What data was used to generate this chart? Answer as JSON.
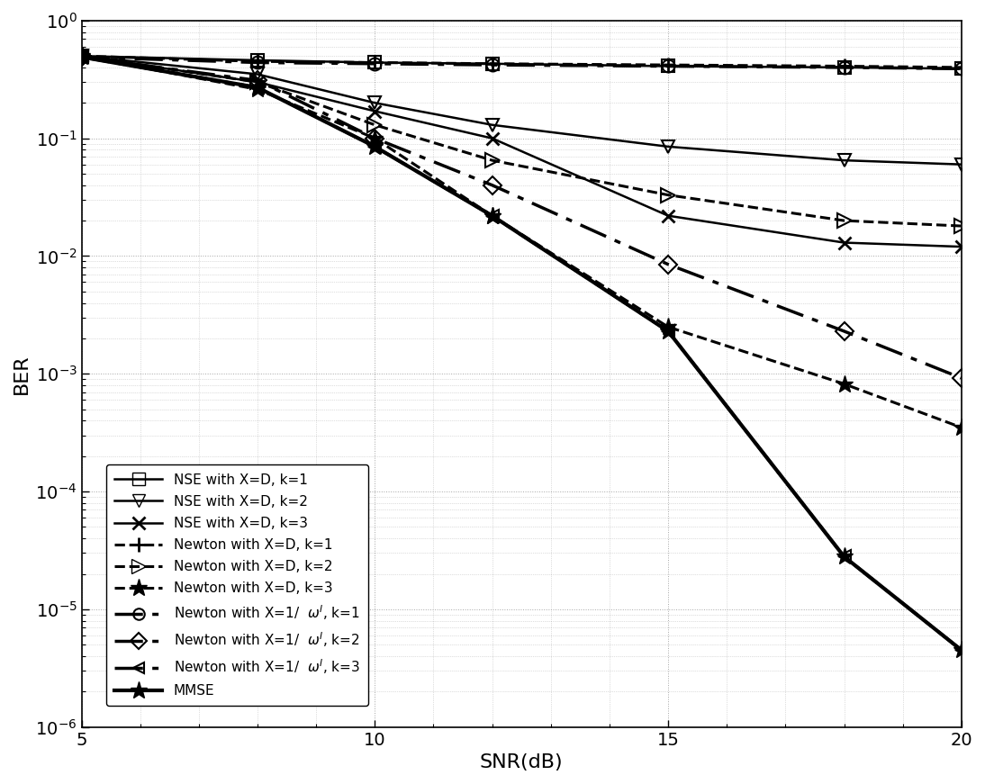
{
  "xlabel": "SNR(dB)",
  "ylabel": "BER",
  "xlim": [
    5,
    20
  ],
  "ylim": [
    1e-06,
    1.0
  ],
  "nse_k1_x": [
    5,
    8,
    10,
    12,
    15,
    18,
    20
  ],
  "nse_k1_y": [
    0.5,
    0.46,
    0.44,
    0.43,
    0.41,
    0.4,
    0.39
  ],
  "nse_k2_x": [
    5,
    8,
    10,
    12,
    15,
    18,
    20
  ],
  "nse_k2_y": [
    0.5,
    0.35,
    0.2,
    0.13,
    0.085,
    0.065,
    0.06
  ],
  "nse_k3_x": [
    5,
    8,
    10,
    12,
    15,
    18,
    20
  ],
  "nse_k3_y": [
    0.5,
    0.3,
    0.17,
    0.1,
    0.022,
    0.013,
    0.012
  ],
  "newton_d_k1_x": [
    5,
    8,
    10,
    12,
    15,
    18,
    20
  ],
  "newton_d_k1_y": [
    0.5,
    0.45,
    0.44,
    0.43,
    0.42,
    0.41,
    0.4
  ],
  "newton_d_k2_x": [
    5,
    8,
    10,
    12,
    15,
    18,
    20
  ],
  "newton_d_k2_y": [
    0.5,
    0.3,
    0.13,
    0.065,
    0.033,
    0.02,
    0.018
  ],
  "newton_d_k3_x": [
    5,
    8,
    10,
    12,
    15,
    18,
    20
  ],
  "newton_d_k3_y": [
    0.5,
    0.26,
    0.1,
    0.022,
    0.0025,
    0.00082,
    0.00035
  ],
  "newton_w_k1_x": [
    5,
    8,
    10,
    12,
    15,
    18,
    20
  ],
  "newton_w_k1_y": [
    0.49,
    0.44,
    0.43,
    0.42,
    0.41,
    0.4,
    0.39
  ],
  "newton_w_k2_x": [
    5,
    8,
    10,
    12,
    15,
    18,
    20
  ],
  "newton_w_k2_y": [
    0.49,
    0.31,
    0.1,
    0.04,
    0.0085,
    0.0023,
    0.00092
  ],
  "newton_w_k3_x": [
    5,
    8,
    10,
    12,
    15,
    18,
    20
  ],
  "newton_w_k3_y": [
    0.49,
    0.27,
    0.085,
    0.022,
    0.0023,
    2.8e-05,
    4.5e-06
  ],
  "mmse_x": [
    5,
    8,
    10,
    12,
    15,
    18,
    20
  ],
  "mmse_y": [
    0.49,
    0.27,
    0.085,
    0.022,
    0.0023,
    2.8e-05,
    4.5e-06
  ]
}
